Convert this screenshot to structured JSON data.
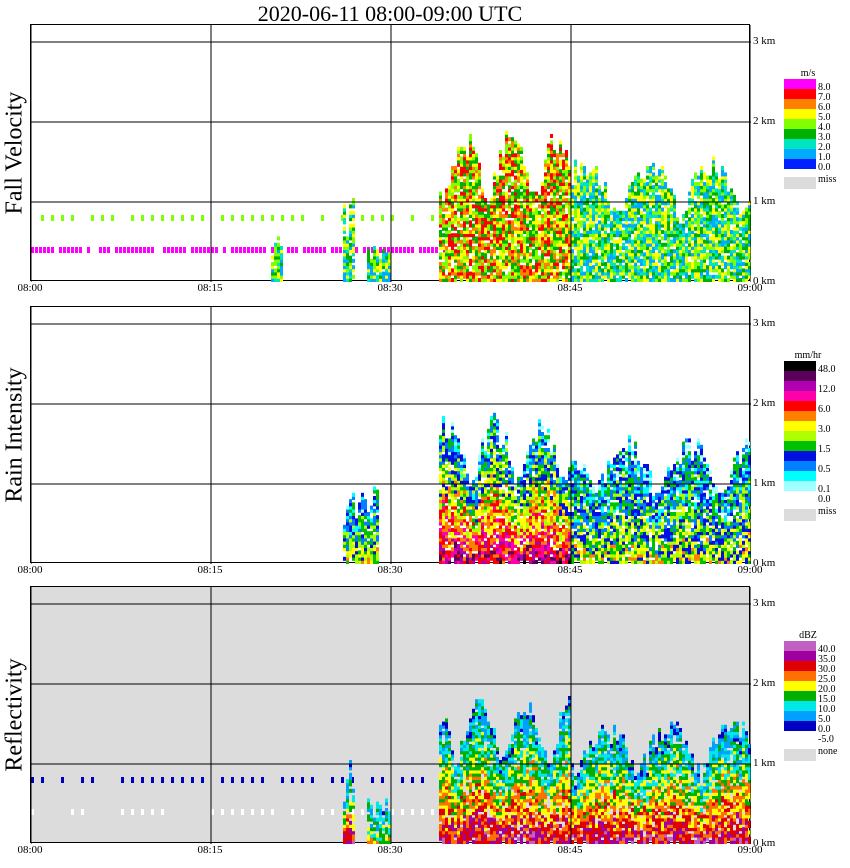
{
  "title": "2020-06-11   08:00-09:00 UTC",
  "x_ticks": [
    "08:00",
    "08:15",
    "08:30",
    "08:45",
    "09:00"
  ],
  "y_ticks": [
    "0 km",
    "1 km",
    "2 km",
    "3 km"
  ],
  "colors": {
    "missing": "#dcdcdc",
    "grid": "#000000"
  },
  "panels": [
    {
      "name": "Fall Velocity",
      "unit": "m/s",
      "missing_label": "miss",
      "background": "#ffffff",
      "legend": [
        {
          "label": "8.0",
          "color": "#ff00ff"
        },
        {
          "label": "7.0",
          "color": "#ff0000"
        },
        {
          "label": "6.0",
          "color": "#ff7f00"
        },
        {
          "label": "5.0",
          "color": "#ffff00"
        },
        {
          "label": "4.0",
          "color": "#7fff00"
        },
        {
          "label": "3.0",
          "color": "#00b000"
        },
        {
          "label": "2.0",
          "color": "#00e5c0"
        },
        {
          "label": "1.0",
          "color": "#00aaff"
        },
        {
          "label": "0.0",
          "color": "#0020ff"
        }
      ]
    },
    {
      "name": "Rain Intensity",
      "unit": "mm/hr",
      "missing_label": "miss",
      "background": "#ffffff",
      "legend": [
        {
          "label": "48.0",
          "color": "#000000"
        },
        {
          "label": "",
          "color": "#5a005a"
        },
        {
          "label": "12.0",
          "color": "#b000b0"
        },
        {
          "label": "",
          "color": "#ff00aa"
        },
        {
          "label": "6.0",
          "color": "#ff0000"
        },
        {
          "label": "",
          "color": "#ff7f00"
        },
        {
          "label": "3.0",
          "color": "#ffff00"
        },
        {
          "label": "",
          "color": "#b0ff00"
        },
        {
          "label": "1.5",
          "color": "#00c000"
        },
        {
          "label": "",
          "color": "#0010e0"
        },
        {
          "label": "0.5",
          "color": "#0080ff"
        },
        {
          "label": "",
          "color": "#00ffff"
        },
        {
          "label": "0.1",
          "color": "#a0ffff"
        },
        {
          "label": "0.0",
          "color": "#ffffff"
        }
      ]
    },
    {
      "name": "Reflectivity",
      "unit": "dBZ",
      "missing_label": "none",
      "background": "#dcdcdc",
      "legend": [
        {
          "label": "40.0",
          "color": "#c060c0"
        },
        {
          "label": "35.0",
          "color": "#a000a0"
        },
        {
          "label": "30.0",
          "color": "#e00000"
        },
        {
          "label": "25.0",
          "color": "#ff7000"
        },
        {
          "label": "20.0",
          "color": "#ffff00"
        },
        {
          "label": "15.0",
          "color": "#00b000"
        },
        {
          "label": "10.0",
          "color": "#00e8e8"
        },
        {
          "label": "5.0",
          "color": "#00a0ff"
        },
        {
          "label": "0.0",
          "color": "#0000c0"
        },
        {
          "label": "-5.0",
          "color": "#ffffff"
        }
      ]
    }
  ],
  "chart_data": {
    "type": "heatmap",
    "title": "2020-06-11   08:00-09:00 UTC",
    "x_range": [
      "08:00",
      "09:00"
    ],
    "y_range_km": [
      0,
      3.2
    ],
    "grid": true,
    "series": [
      {
        "name": "Fall Velocity",
        "unit": "m/s",
        "colorbar_ticks": [
          0.0,
          1.0,
          2.0,
          3.0,
          4.0,
          5.0,
          6.0,
          7.0,
          8.0
        ],
        "echo_regions": [
          {
            "t": [
              "08:20",
              "08:21"
            ],
            "z_km": [
              0,
              0.6
            ],
            "level": 2.0
          },
          {
            "t": [
              "08:26",
              "08:27"
            ],
            "z_km": [
              0,
              1.1
            ],
            "level": 3.0
          },
          {
            "t": [
              "08:28",
              "08:30"
            ],
            "z_km": [
              0,
              0.5
            ],
            "level": 2.0
          },
          {
            "t": [
              "08:34",
              "08:45"
            ],
            "z_km": [
              0,
              1.9
            ],
            "level": 4.0
          },
          {
            "t": [
              "08:45",
              "09:00"
            ],
            "z_km": [
              0,
              1.6
            ],
            "level": 1.0
          }
        ],
        "bands": [
          {
            "t": [
              "08:00",
              "08:35"
            ],
            "z_km": 0.4,
            "level": 8.0
          },
          {
            "t": [
              "08:00",
              "08:35"
            ],
            "z_km": 0.8,
            "level": 4.0
          }
        ]
      },
      {
        "name": "Rain Intensity",
        "unit": "mm/hr",
        "colorbar_ticks": [
          0.0,
          0.1,
          0.5,
          1.5,
          3.0,
          6.0,
          12.0,
          48.0
        ],
        "echo_regions": [
          {
            "t": [
              "08:26",
              "08:29"
            ],
            "z_km": [
              0,
              1.0
            ],
            "level": 0.1
          },
          {
            "t": [
              "08:34",
              "08:45"
            ],
            "z_km": [
              0,
              1.9
            ],
            "level": 1.5
          },
          {
            "t": [
              "08:45",
              "09:00"
            ],
            "z_km": [
              0,
              1.6
            ],
            "level": 0.5
          }
        ]
      },
      {
        "name": "Reflectivity",
        "unit": "dBZ",
        "colorbar_ticks": [
          -5.0,
          0.0,
          5.0,
          10.0,
          15.0,
          20.0,
          25.0,
          30.0,
          35.0,
          40.0
        ],
        "echo_regions": [
          {
            "t": [
              "08:26",
              "08:27"
            ],
            "z_km": [
              0,
              1.1
            ],
            "level": 5.0
          },
          {
            "t": [
              "08:28",
              "08:30"
            ],
            "z_km": [
              0,
              0.6
            ],
            "level": 0.0
          },
          {
            "t": [
              "08:34",
              "08:45"
            ],
            "z_km": [
              0,
              1.9
            ],
            "level": 20.0
          },
          {
            "t": [
              "08:45",
              "09:00"
            ],
            "z_km": [
              0,
              1.6
            ],
            "level": 10.0
          }
        ],
        "bands": [
          {
            "t": [
              "08:00",
              "08:35"
            ],
            "z_km": 0.4,
            "level": -5.0
          },
          {
            "t": [
              "08:00",
              "08:35"
            ],
            "z_km": 0.8,
            "level": 0.0
          }
        ]
      }
    ]
  }
}
